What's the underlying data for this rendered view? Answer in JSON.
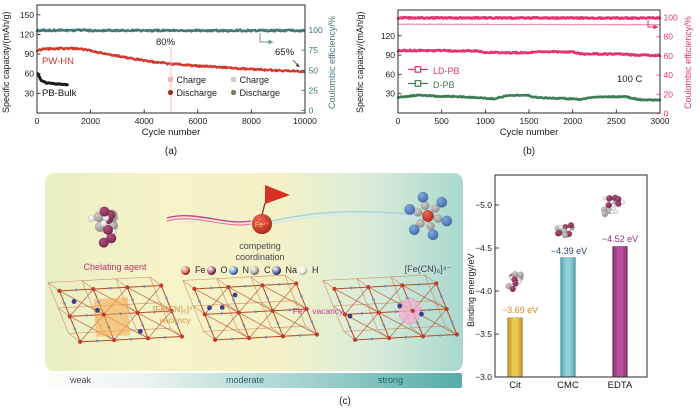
{
  "chart_data": [
    {
      "id": "panel_a",
      "type": "scatter",
      "panel_label": "(a)",
      "xlabel": "Cycle number",
      "ylabel_left": "Specific capacity/(mAh/g)",
      "ylabel_right": "Coulombic efficiency/%",
      "xlim": [
        0,
        10000
      ],
      "xticks": [
        0,
        2000,
        4000,
        6000,
        8000,
        10000
      ],
      "yticks_left": [
        30,
        60,
        90,
        120,
        150
      ],
      "yticks_right": [
        0,
        25,
        50,
        75,
        100
      ],
      "axis_color_right": "#41787a",
      "series": [
        {
          "name": "PW-HN capacity",
          "axis": "left",
          "color": "#d2382e",
          "width": 2.2,
          "jitter": 1.5,
          "keypoints": [
            [
              0,
              96
            ],
            [
              400,
              98
            ],
            [
              1200,
              99
            ],
            [
              1800,
              97
            ],
            [
              2600,
              90
            ],
            [
              3400,
              84
            ],
            [
              4200,
              79
            ],
            [
              5000,
              75
            ],
            [
              6000,
              72
            ],
            [
              7000,
              69.5
            ],
            [
              8000,
              67
            ],
            [
              9000,
              65
            ],
            [
              10000,
              63
            ]
          ]
        },
        {
          "name": "PB-Bulk capacity",
          "axis": "left",
          "color": "#1b1b1b",
          "width": 3.0,
          "jitter": 0.6,
          "keypoints": [
            [
              30,
              60
            ],
            [
              150,
              50
            ],
            [
              350,
              46
            ],
            [
              700,
              44.5
            ],
            [
              1150,
              43.5
            ]
          ]
        },
        {
          "name": "Coulombic efficiency",
          "axis": "right",
          "color": "#41787a",
          "width": 2.4,
          "jitter": 1.2,
          "keypoints": [
            [
              0,
              99.5
            ],
            [
              10000,
              99.3
            ]
          ]
        }
      ],
      "series_labels": {
        "pw_hn": "PW-HN",
        "pb_bulk": "PB-Bulk"
      },
      "annotations": {
        "mid": "80%",
        "mid_x": 5000,
        "end": "65%"
      },
      "legend": [
        {
          "label": "Charge",
          "color": "#efb6b4",
          "shape": "square"
        },
        {
          "label": "Discharge",
          "color": "#9c2f28",
          "shape": "circle"
        },
        {
          "label": "Charge",
          "color": "#c7d2c5",
          "shape": "square"
        },
        {
          "label": "Discharge",
          "color": "#70795c",
          "shape": "circle"
        }
      ]
    },
    {
      "id": "panel_b",
      "type": "scatter",
      "panel_label": "(b)",
      "xlabel": "Cycle number",
      "ylabel_left": "Specific capacity/(mAh/g)",
      "ylabel_right": "Coulombic efficiency/%",
      "xlim": [
        0,
        3000
      ],
      "xticks": [
        0,
        500,
        1000,
        1500,
        2000,
        2500,
        3000
      ],
      "yticks_left": [
        30,
        60,
        90,
        120
      ],
      "yticks_right": [
        0,
        20,
        40,
        60,
        80,
        100
      ],
      "axis_color_right": "#e6336e",
      "series": [
        {
          "name": "LD-PB efficiency",
          "axis": "right",
          "color": "#e6336e",
          "width": 2.8,
          "jitter": 0.7,
          "keypoints": [
            [
              0,
              99.6
            ],
            [
              3000,
              99.4
            ]
          ]
        },
        {
          "name": "LD-PB efficiency charge",
          "axis": "right",
          "color": "#f48cb1",
          "width": 1.1,
          "jitter": 0.3,
          "keypoints": [
            [
              0,
              93
            ],
            [
              3000,
              92.5
            ]
          ]
        },
        {
          "name": "LD-PB capacity",
          "axis": "left",
          "color": "#e6336e",
          "width": 2.6,
          "jitter": 1.2,
          "keypoints": [
            [
              0,
              97
            ],
            [
              900,
              96.5
            ],
            [
              1000,
              94
            ],
            [
              1500,
              93.5
            ],
            [
              1600,
              95.5
            ],
            [
              2000,
              95
            ],
            [
              2100,
              92
            ],
            [
              2600,
              91.5
            ],
            [
              2700,
              90
            ],
            [
              3000,
              89.5
            ]
          ]
        },
        {
          "name": "D-PB capacity",
          "axis": "left",
          "color": "#3c7d54",
          "width": 2.6,
          "jitter": 0.9,
          "keypoints": [
            [
              0,
              24
            ],
            [
              250,
              28
            ],
            [
              450,
              26
            ],
            [
              700,
              25.5
            ],
            [
              1100,
              22
            ],
            [
              1250,
              27
            ],
            [
              1450,
              28
            ],
            [
              1600,
              24
            ],
            [
              2000,
              22
            ],
            [
              2100,
              21
            ],
            [
              2250,
              25
            ],
            [
              2600,
              25.5
            ],
            [
              2750,
              21
            ],
            [
              3000,
              20
            ]
          ]
        }
      ],
      "annotations": {
        "rate": "100 C"
      },
      "legend": [
        {
          "label": "LD-PB",
          "color": "#e6336e"
        },
        {
          "label": "D-PB",
          "color": "#3c7d54"
        }
      ]
    },
    {
      "id": "binding_energy",
      "type": "bar",
      "panel_label": "(c)",
      "categories": [
        "Cit",
        "CMC",
        "EDTA"
      ],
      "values": [
        -3.69,
        -4.39,
        -4.52
      ],
      "value_labels": [
        "−3.69 eV",
        "−4.39 eV",
        "−4.52 eV"
      ],
      "label_colors": [
        "#d8862b",
        "#2f4668",
        "#8c3580"
      ],
      "bar_colors": [
        "#ecc94e",
        "#8fd0d8",
        "#b5509b"
      ],
      "bar_edge_colors": [
        "#c08c20",
        "#4f9dad",
        "#7e2a67"
      ],
      "ylabel": "Binding energy/eV",
      "yticks": [
        -3.0,
        -3.5,
        -4.0,
        -4.5,
        -5.0
      ],
      "ylim": [
        -3.0,
        -5.35
      ]
    }
  ],
  "panel_c": {
    "labels": {
      "chelating_agent": "Chelating agent",
      "competing": "competing coordination",
      "fe_ion": "Fe³⁺",
      "ferrocyanide": "[Fe(CN)₆]⁴⁻",
      "vacancy_fecn": "[Fe(CN)₆]⁴⁻ vacancy",
      "vacancy_fe": "Fe³⁺ vacancy",
      "scale_weak": "weak",
      "scale_moderate": "moderate",
      "scale_strong": "strong"
    },
    "atom_legend": [
      {
        "symbol": "Fe",
        "color": "#cf3b30"
      },
      {
        "symbol": "O",
        "color": "#8e2d5a"
      },
      {
        "symbol": "N",
        "color": "#4472c0"
      },
      {
        "symbol": "C",
        "color": "#9d9696"
      },
      {
        "symbol": "Na",
        "color": "#3c3f8f"
      },
      {
        "symbol": "H",
        "color": "#f1eeec"
      }
    ]
  }
}
